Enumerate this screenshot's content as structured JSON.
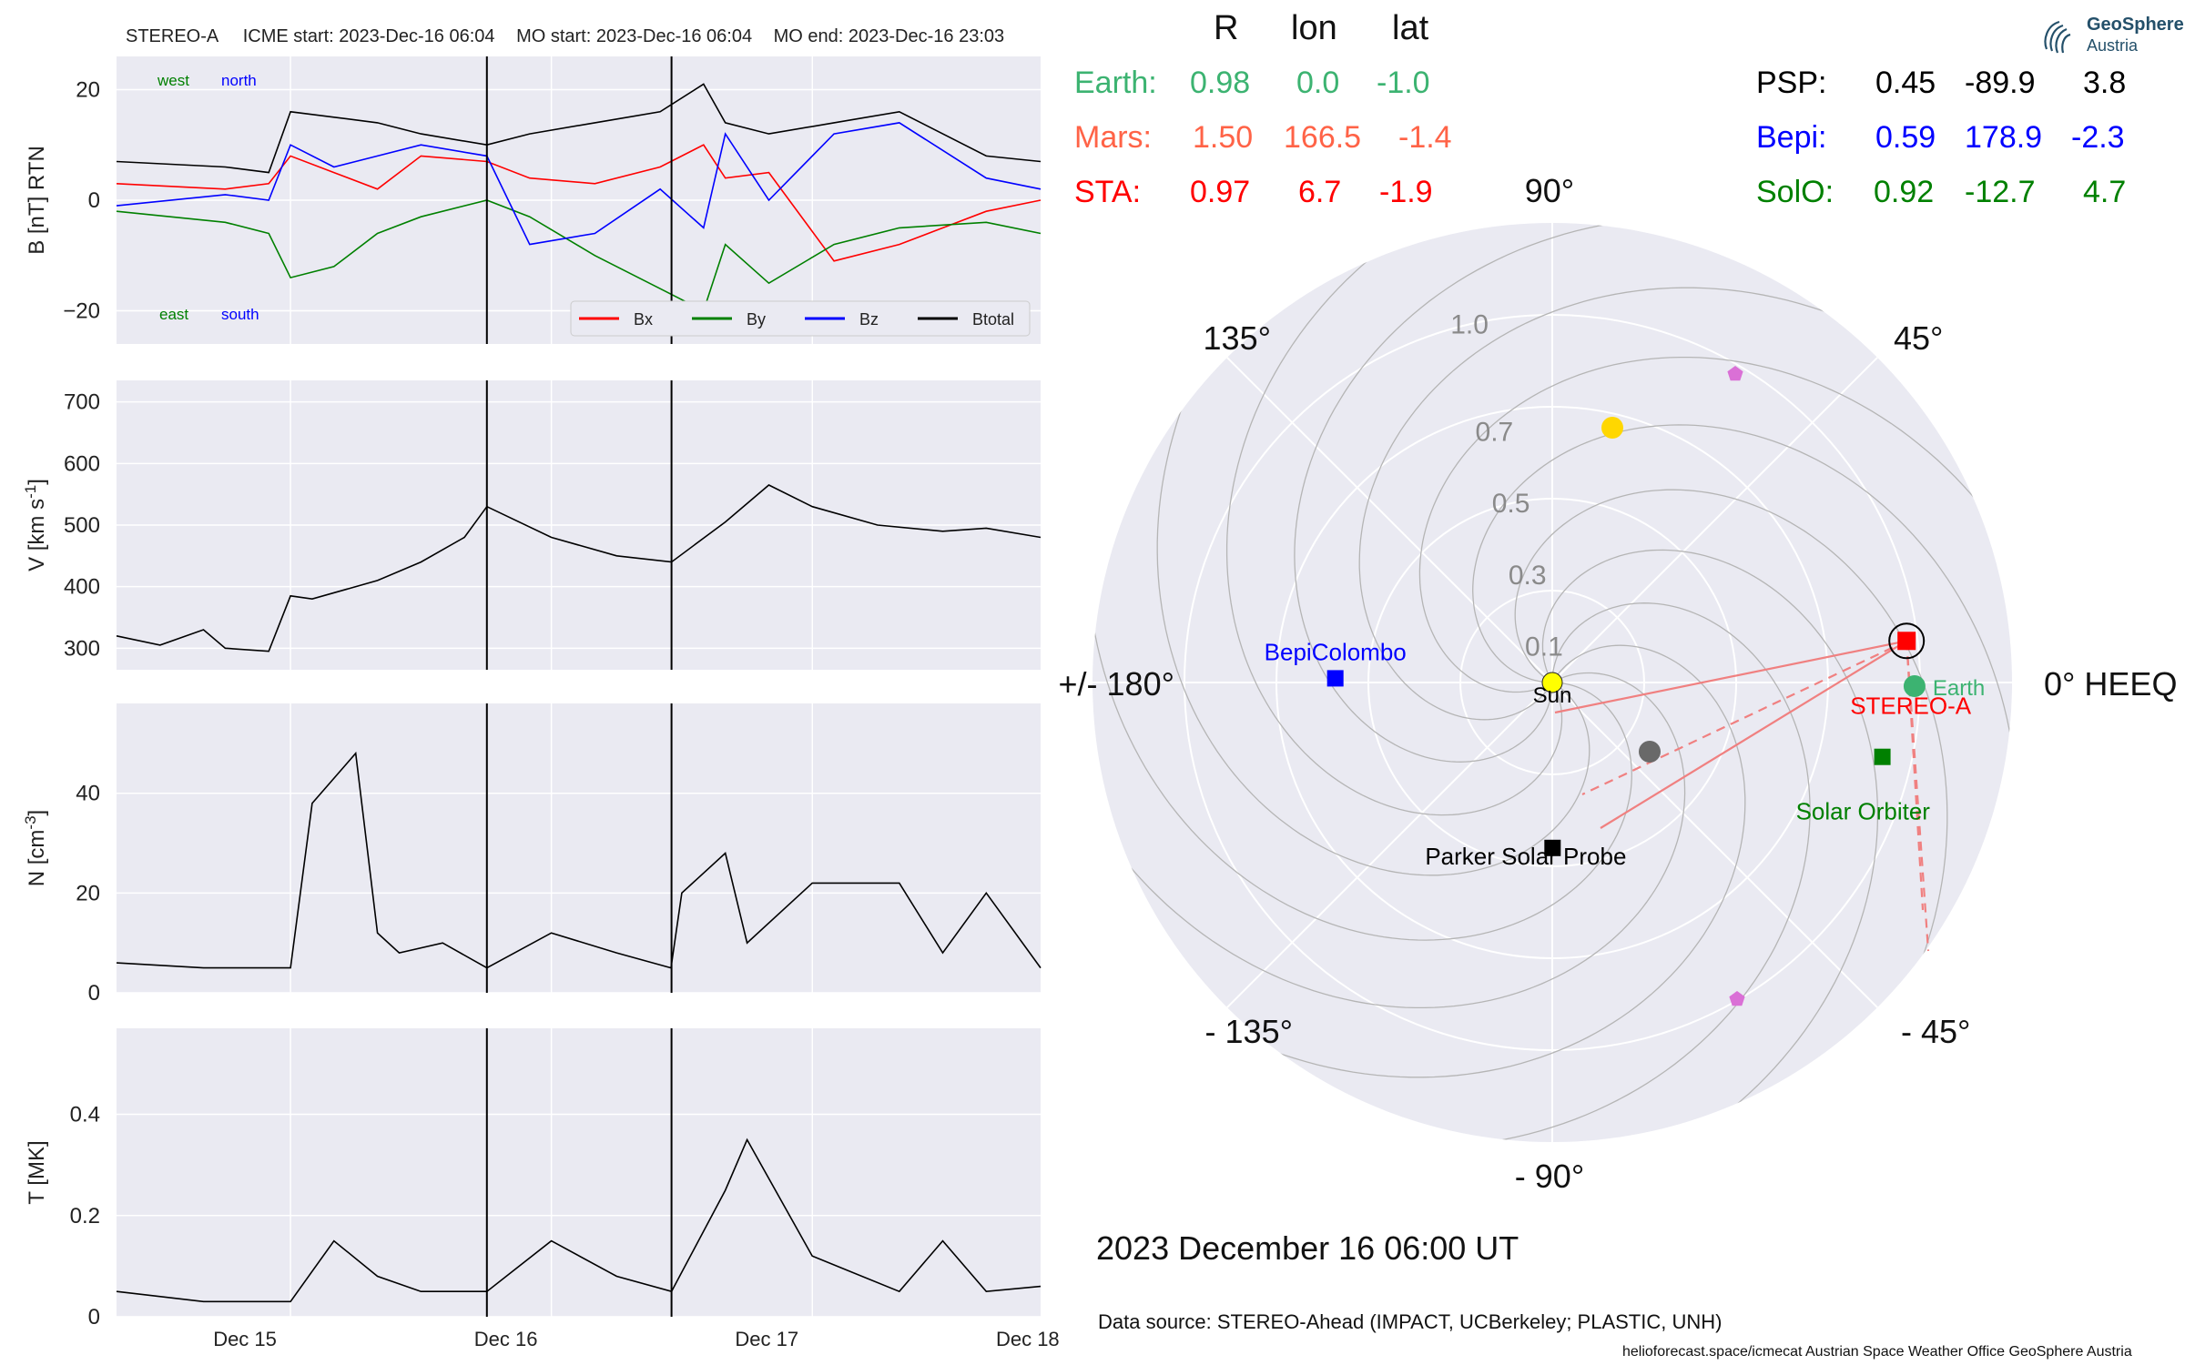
{
  "header": {
    "spacecraft": "STEREO-A",
    "icme_start": "ICME start: 2023-Dec-16 06:04",
    "mo_start": "MO start: 2023-Dec-16 06:04",
    "mo_end": "MO end: 2023-Dec-16 23:03"
  },
  "logo": {
    "line1": "GeoSphere",
    "line2": "Austria"
  },
  "position_table": {
    "headers": [
      "R",
      "lon",
      "lat"
    ],
    "left_rows": [
      {
        "name": "Earth:",
        "r": "0.98",
        "lon": "0.0",
        "lat": "-1.0",
        "color": "#3cb371"
      },
      {
        "name": "Mars:",
        "r": "1.50",
        "lon": "166.5",
        "lat": "-1.4",
        "color": "#ff6347"
      },
      {
        "name": "STA:",
        "r": "0.97",
        "lon": "6.7",
        "lat": "-1.9",
        "color": "#ff0000"
      }
    ],
    "right_rows": [
      {
        "name": "PSP:",
        "r": "0.45",
        "lon": "-89.9",
        "lat": "3.8",
        "color": "#000000"
      },
      {
        "name": "Bepi:",
        "r": "0.59",
        "lon": "178.9",
        "lat": "-2.3",
        "color": "#0000ff"
      },
      {
        "name": "SolO:",
        "r": "0.92",
        "lon": "-12.7",
        "lat": "4.7",
        "color": "#008000"
      }
    ]
  },
  "polar_plot": {
    "angle_labels": [
      "0° HEEQ",
      "45°",
      "90°",
      "135°",
      "+/- 180°",
      "- 135°",
      "- 90°",
      "- 45°"
    ],
    "radial_ticks": [
      "0.1",
      "0.3",
      "0.5",
      "0.7",
      "1.0"
    ],
    "labels": {
      "sun": "Sun",
      "earth": "Earth",
      "stereo_a": "STEREO-A",
      "bepi": "BepiColombo",
      "solo": "Solar Orbiter",
      "psp": "Parker Solar Probe"
    },
    "colors": {
      "earth": "#3cb371",
      "stereo_a": "#ff0000",
      "bepi": "#0000ff",
      "solo": "#008000",
      "psp": "#000000",
      "sun": "#ffff00",
      "mars": "#ff6347",
      "unlabeled_yellow": "#ffd700",
      "unlabeled_gray": "#696969",
      "pentagon": "#da70d6"
    }
  },
  "timestamp": "2023 December 16  06:00 UT",
  "data_source": "Data source: STEREO-Ahead (IMPACT, UCBerkeley; PLASTIC, UNH)",
  "footer": "helioforecast.space/icmecat   Austrian Space Weather Office   GeoSphere Austria",
  "chart_data": [
    {
      "type": "line",
      "ylabel": "B [nT] RTN",
      "ylim": [
        -26,
        26
      ],
      "yticks": [
        -20,
        0,
        20
      ],
      "x_range_days": [
        "2023-12-14 20:00",
        "2023-12-18 09:00"
      ],
      "xticks": [
        "Dec 15",
        "Dec 16",
        "Dec 17",
        "Dec 18"
      ],
      "annotations": {
        "top_left": [
          "west",
          "north"
        ],
        "bottom_left": [
          "east",
          "south"
        ]
      },
      "legend": {
        "placement": "lower right",
        "entries": [
          "Bx",
          "By",
          "Bz",
          "Btotal"
        ]
      },
      "vertical_lines": [
        "2023-12-16 06:04",
        "2023-12-16 23:03"
      ],
      "series": [
        {
          "name": "Bx",
          "color": "#ff0000",
          "x": [
            "2023-12-14 20:00",
            "2023-12-15 06:00",
            "2023-12-15 10:00",
            "2023-12-15 12:00",
            "2023-12-15 16:00",
            "2023-12-15 20:00",
            "2023-12-16 00:00",
            "2023-12-16 06:04",
            "2023-12-16 10:00",
            "2023-12-16 16:00",
            "2023-12-16 22:00",
            "2023-12-17 02:00",
            "2023-12-17 04:00",
            "2023-12-17 08:00",
            "2023-12-17 14:00",
            "2023-12-17 20:00",
            "2023-12-18 04:00",
            "2023-12-18 09:00"
          ],
          "y": [
            3,
            2,
            3,
            8,
            5,
            2,
            8,
            7,
            4,
            3,
            6,
            10,
            4,
            5,
            -11,
            -8,
            -2,
            0
          ]
        },
        {
          "name": "By",
          "color": "#008000",
          "x": [
            "2023-12-14 20:00",
            "2023-12-15 06:00",
            "2023-12-15 10:00",
            "2023-12-15 12:00",
            "2023-12-15 16:00",
            "2023-12-15 20:00",
            "2023-12-16 00:00",
            "2023-12-16 06:04",
            "2023-12-16 10:00",
            "2023-12-16 16:00",
            "2023-12-16 22:00",
            "2023-12-17 02:00",
            "2023-12-17 04:00",
            "2023-12-17 08:00",
            "2023-12-17 14:00",
            "2023-12-17 20:00",
            "2023-12-18 04:00",
            "2023-12-18 09:00"
          ],
          "y": [
            -2,
            -4,
            -6,
            -14,
            -12,
            -6,
            -3,
            0,
            -3,
            -10,
            -16,
            -20,
            -8,
            -15,
            -8,
            -5,
            -4,
            -6
          ]
        },
        {
          "name": "Bz",
          "color": "#0000ff",
          "x": [
            "2023-12-14 20:00",
            "2023-12-15 06:00",
            "2023-12-15 10:00",
            "2023-12-15 12:00",
            "2023-12-15 16:00",
            "2023-12-15 20:00",
            "2023-12-16 00:00",
            "2023-12-16 06:04",
            "2023-12-16 10:00",
            "2023-12-16 16:00",
            "2023-12-16 22:00",
            "2023-12-17 02:00",
            "2023-12-17 04:00",
            "2023-12-17 08:00",
            "2023-12-17 14:00",
            "2023-12-17 20:00",
            "2023-12-18 04:00",
            "2023-12-18 09:00"
          ],
          "y": [
            -1,
            1,
            0,
            10,
            6,
            8,
            10,
            8,
            -8,
            -6,
            2,
            -5,
            12,
            0,
            12,
            14,
            4,
            2
          ]
        },
        {
          "name": "Btotal",
          "color": "#000000",
          "x": [
            "2023-12-14 20:00",
            "2023-12-15 06:00",
            "2023-12-15 10:00",
            "2023-12-15 12:00",
            "2023-12-15 16:00",
            "2023-12-15 20:00",
            "2023-12-16 00:00",
            "2023-12-16 06:04",
            "2023-12-16 10:00",
            "2023-12-16 16:00",
            "2023-12-16 22:00",
            "2023-12-17 02:00",
            "2023-12-17 04:00",
            "2023-12-17 08:00",
            "2023-12-17 14:00",
            "2023-12-17 20:00",
            "2023-12-18 04:00",
            "2023-12-18 09:00"
          ],
          "y": [
            7,
            6,
            5,
            16,
            15,
            14,
            12,
            10,
            12,
            14,
            16,
            21,
            14,
            12,
            14,
            16,
            8,
            7
          ]
        }
      ]
    },
    {
      "type": "line",
      "ylabel": "V [km s^-1]",
      "ylim": [
        265,
        735
      ],
      "yticks": [
        300,
        400,
        500,
        600,
        700
      ],
      "xticks": [
        "Dec 15",
        "Dec 16",
        "Dec 17",
        "Dec 18"
      ],
      "vertical_lines": [
        "2023-12-16 06:04",
        "2023-12-16 23:03"
      ],
      "series": [
        {
          "name": "",
          "color": "#000000",
          "x": [
            "2023-12-14 20:00",
            "2023-12-15 00:00",
            "2023-12-15 04:00",
            "2023-12-15 06:00",
            "2023-12-15 10:00",
            "2023-12-15 12:00",
            "2023-12-15 14:00",
            "2023-12-15 20:00",
            "2023-12-16 00:00",
            "2023-12-16 04:00",
            "2023-12-16 06:04",
            "2023-12-16 12:00",
            "2023-12-16 18:00",
            "2023-12-16 23:03",
            "2023-12-17 04:00",
            "2023-12-17 08:00",
            "2023-12-17 12:00",
            "2023-12-17 18:00",
            "2023-12-18 00:00",
            "2023-12-18 04:00",
            "2023-12-18 09:00"
          ],
          "y": [
            320,
            305,
            330,
            300,
            295,
            385,
            380,
            410,
            440,
            480,
            530,
            480,
            450,
            440,
            505,
            565,
            530,
            500,
            490,
            495,
            480
          ]
        }
      ]
    },
    {
      "type": "line",
      "ylabel": "N [cm^-3]",
      "ylim": [
        0,
        58
      ],
      "yticks": [
        0,
        20,
        40
      ],
      "xticks": [
        "Dec 15",
        "Dec 16",
        "Dec 17",
        "Dec 18"
      ],
      "vertical_lines": [
        "2023-12-16 06:04",
        "2023-12-16 23:03"
      ],
      "series": [
        {
          "name": "",
          "color": "#000000",
          "x": [
            "2023-12-14 20:00",
            "2023-12-15 04:00",
            "2023-12-15 12:00",
            "2023-12-15 14:00",
            "2023-12-15 18:00",
            "2023-12-15 20:00",
            "2023-12-15 22:00",
            "2023-12-16 02:00",
            "2023-12-16 06:04",
            "2023-12-16 12:00",
            "2023-12-16 18:00",
            "2023-12-16 23:00",
            "2023-12-17 00:00",
            "2023-12-17 04:00",
            "2023-12-17 06:00",
            "2023-12-17 12:00",
            "2023-12-17 20:00",
            "2023-12-18 00:00",
            "2023-12-18 04:00",
            "2023-12-18 09:00"
          ],
          "y": [
            6,
            5,
            5,
            38,
            48,
            12,
            8,
            10,
            5,
            12,
            8,
            5,
            20,
            28,
            10,
            22,
            22,
            8,
            20,
            5
          ]
        }
      ]
    },
    {
      "type": "line",
      "ylabel": "T [MK]",
      "ylim": [
        0,
        0.57
      ],
      "yticks": [
        0.0,
        0.2,
        0.4
      ],
      "xticks": [
        "Dec 15",
        "Dec 16",
        "Dec 17",
        "Dec 18"
      ],
      "vertical_lines": [
        "2023-12-16 06:04",
        "2023-12-16 23:03"
      ],
      "series": [
        {
          "name": "",
          "color": "#000000",
          "x": [
            "2023-12-14 20:00",
            "2023-12-15 04:00",
            "2023-12-15 12:00",
            "2023-12-15 16:00",
            "2023-12-15 20:00",
            "2023-12-16 00:00",
            "2023-12-16 06:04",
            "2023-12-16 12:00",
            "2023-12-16 18:00",
            "2023-12-16 23:03",
            "2023-12-17 04:00",
            "2023-12-17 06:00",
            "2023-12-17 12:00",
            "2023-12-17 20:00",
            "2023-12-18 00:00",
            "2023-12-18 04:00",
            "2023-12-18 09:00"
          ],
          "y": [
            0.05,
            0.03,
            0.03,
            0.15,
            0.08,
            0.05,
            0.05,
            0.15,
            0.08,
            0.05,
            0.25,
            0.35,
            0.12,
            0.05,
            0.15,
            0.05,
            0.06
          ]
        }
      ]
    }
  ]
}
